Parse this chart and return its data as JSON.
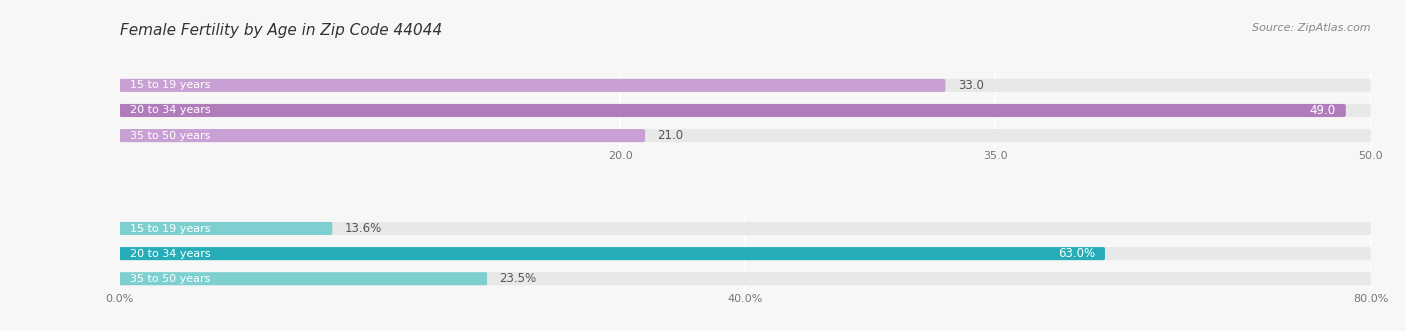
{
  "title": "Female Fertility by Age in Zip Code 44044",
  "source": "Source: ZipAtlas.com",
  "top_section": {
    "categories": [
      "15 to 19 years",
      "20 to 34 years",
      "35 to 50 years"
    ],
    "values": [
      33.0,
      49.0,
      21.0
    ],
    "xlim": [
      0,
      50.0
    ],
    "xticks": [
      20.0,
      35.0,
      50.0
    ],
    "xtick_labels": [
      "20.0",
      "35.0",
      "50.0"
    ],
    "bar_colors": [
      "#c9a0d4",
      "#b07cbb",
      "#c9a0d4"
    ],
    "bar_bg_color": "#e8e8e8",
    "value_inside": [
      false,
      true,
      false
    ],
    "value_labels": [
      "33.0",
      "49.0",
      "21.0"
    ]
  },
  "bottom_section": {
    "categories": [
      "15 to 19 years",
      "20 to 34 years",
      "35 to 50 years"
    ],
    "values": [
      13.6,
      63.0,
      23.5
    ],
    "xlim": [
      0,
      80.0
    ],
    "xticks": [
      0.0,
      40.0,
      80.0
    ],
    "xtick_labels": [
      "0.0%",
      "40.0%",
      "80.0%"
    ],
    "bar_colors": [
      "#7ed0d0",
      "#26adb8",
      "#7ed0d0"
    ],
    "bar_bg_color": "#e8e8e8",
    "value_inside": [
      false,
      true,
      false
    ],
    "value_labels": [
      "13.6%",
      "63.0%",
      "23.5%"
    ]
  },
  "background_color": "#f7f7f7",
  "bar_height": 0.52,
  "bar_label_fontsize": 8.5,
  "category_label_fontsize": 8,
  "title_fontsize": 11,
  "source_fontsize": 8,
  "tick_fontsize": 8
}
